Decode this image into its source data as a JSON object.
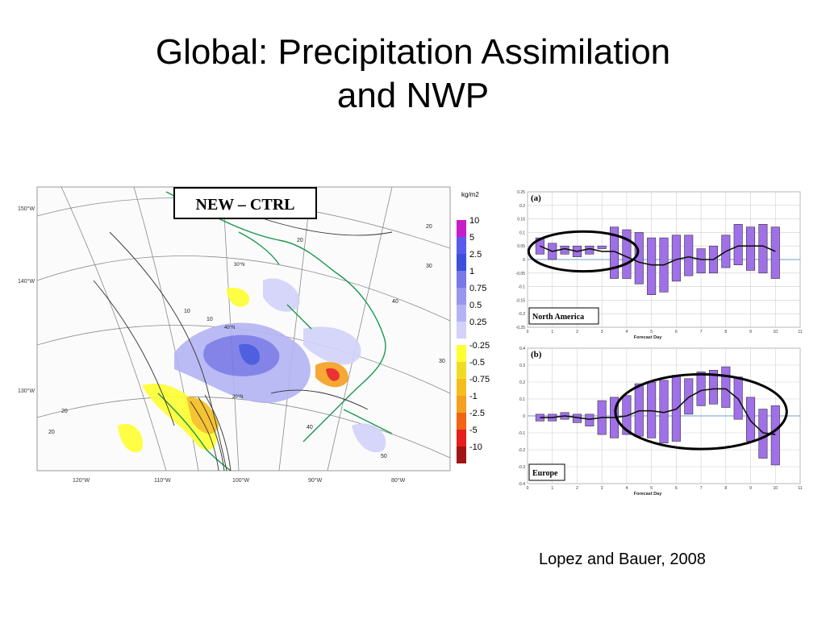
{
  "slide": {
    "title_line1": "Global: Precipitation Assimilation",
    "title_line2": "and NWP",
    "citation": "Lopez and Bauer, 2008"
  },
  "map": {
    "label": "NEW – CTRL",
    "unit": "kg/m2",
    "legend": [
      {
        "label": "10",
        "color": "#c81ec8"
      },
      {
        "label": "5",
        "color": "#5a5af0"
      },
      {
        "label": "2.5",
        "color": "#3c50dc"
      },
      {
        "label": "1",
        "color": "#7878e6"
      },
      {
        "label": "0.75",
        "color": "#9696ee"
      },
      {
        "label": "0.5",
        "color": "#b4b4f4"
      },
      {
        "label": "0.25",
        "color": "#d2d2fa"
      },
      {
        "label": "-0.25",
        "color": "#ffff32"
      },
      {
        "label": "-0.5",
        "color": "#f0dc28"
      },
      {
        "label": "-0.75",
        "color": "#f5be1e"
      },
      {
        "label": "-1",
        "color": "#f5a01e"
      },
      {
        "label": "-2.5",
        "color": "#f06414"
      },
      {
        "label": "-5",
        "color": "#e61e1e"
      },
      {
        "label": "-10",
        "color": "#a01414"
      }
    ],
    "lat_labels": [
      "150°W",
      "140°W",
      "130°W"
    ],
    "lon_labels": [
      "120°W",
      "110°W",
      "100°W",
      "90°W",
      "80°W"
    ],
    "contour_labels": [
      "20",
      "30°N",
      "40°N",
      "20",
      "10",
      "10",
      "20",
      "20°N",
      "20",
      "30",
      "30",
      "40",
      "40",
      "50"
    ]
  },
  "chart_data": [
    {
      "type": "bar",
      "panel": "(a)",
      "region": "North America",
      "xlabel": "Forecast Day",
      "ylabel": "",
      "x_ticks": [
        "0",
        "1",
        "2",
        "3",
        "4",
        "5",
        "6",
        "7",
        "8",
        "9",
        "10",
        "11"
      ],
      "y_ticks": [
        "0.25",
        "0.2",
        "0.15",
        "0.1",
        "0.05",
        "0",
        "-0.05",
        "-0.1",
        "-0.15",
        "-0.2",
        "-0.25"
      ],
      "xlim": [
        0,
        11
      ],
      "ylim": [
        -0.25,
        0.25
      ],
      "x": [
        0.5,
        1,
        1.5,
        2,
        2.5,
        3,
        3.5,
        4,
        4.5,
        5,
        5.5,
        6,
        6.5,
        7,
        7.5,
        8,
        8.5,
        9,
        9.5,
        10
      ],
      "bar_low": [
        0.02,
        0.0,
        0.02,
        0.01,
        0.02,
        0.04,
        -0.07,
        -0.07,
        -0.09,
        -0.13,
        -0.12,
        -0.08,
        -0.06,
        -0.05,
        -0.05,
        -0.03,
        -0.02,
        -0.04,
        -0.05,
        -0.07
      ],
      "bar_high": [
        0.08,
        0.06,
        0.05,
        0.05,
        0.05,
        0.05,
        0.12,
        0.11,
        0.1,
        0.08,
        0.08,
        0.09,
        0.09,
        0.04,
        0.05,
        0.09,
        0.13,
        0.12,
        0.13,
        0.12
      ],
      "mean": [
        0.05,
        0.03,
        0.04,
        0.03,
        0.04,
        0.03,
        0.03,
        0.01,
        -0.01,
        -0.02,
        -0.02,
        0.0,
        0.01,
        0.0,
        0.0,
        0.03,
        0.05,
        0.05,
        0.05,
        0.03
      ],
      "bar_color": "#a070e8",
      "highlight_days": [
        0.5,
        4.0
      ]
    },
    {
      "type": "bar",
      "panel": "(b)",
      "region": "Europe",
      "xlabel": "Forecast Day",
      "ylabel": "",
      "x_ticks": [
        "0",
        "1",
        "2",
        "3",
        "4",
        "5",
        "6",
        "7",
        "8",
        "9",
        "10",
        "11"
      ],
      "y_ticks": [
        "0.4",
        "0.3",
        "0.2",
        "0.1",
        "0",
        "-0.1",
        "-0.2",
        "-0.3",
        "-0.4"
      ],
      "xlim": [
        0,
        11
      ],
      "ylim": [
        -0.4,
        0.4
      ],
      "x": [
        0.5,
        1,
        1.5,
        2,
        2.5,
        3,
        3.5,
        4,
        4.5,
        5,
        5.5,
        6,
        6.5,
        7,
        7.5,
        8,
        8.5,
        9,
        9.5,
        10
      ],
      "bar_low": [
        -0.03,
        -0.03,
        -0.02,
        -0.04,
        -0.06,
        -0.11,
        -0.13,
        -0.11,
        -0.12,
        -0.13,
        -0.16,
        -0.15,
        0.01,
        0.06,
        0.07,
        0.05,
        -0.02,
        -0.15,
        -0.25,
        -0.29
      ],
      "bar_high": [
        0.01,
        0.01,
        0.02,
        0.01,
        0.01,
        0.09,
        0.11,
        0.12,
        0.19,
        0.2,
        0.21,
        0.24,
        0.22,
        0.26,
        0.27,
        0.29,
        0.23,
        0.11,
        0.04,
        0.06
      ],
      "mean": [
        -0.01,
        -0.01,
        0.0,
        -0.01,
        -0.02,
        -0.01,
        -0.01,
        0.0,
        0.03,
        0.03,
        0.02,
        0.04,
        0.11,
        0.15,
        0.16,
        0.16,
        0.1,
        -0.03,
        -0.1,
        -0.11
      ],
      "bar_color": "#a070e8",
      "highlight_days": [
        4.0,
        10.0
      ]
    }
  ]
}
